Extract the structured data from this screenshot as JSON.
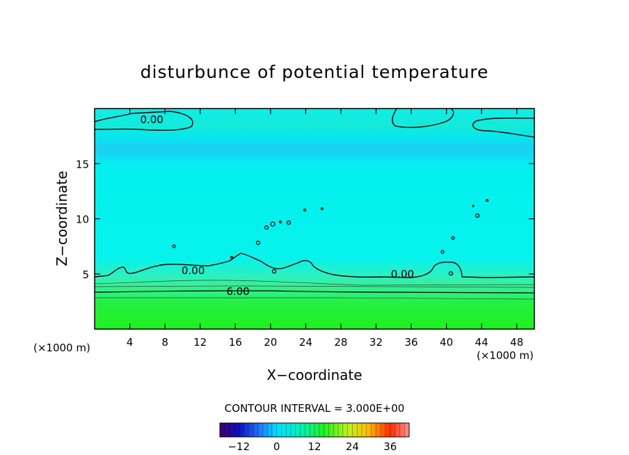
{
  "chart_data": {
    "type": "heatmap",
    "title": "disturbunce of potential temperature",
    "xlabel": "X−coordinate",
    "ylabel": "Z−coordinate",
    "x_unit": "(×1000 m)",
    "z_unit": "(×1000 m)",
    "xlim": [
      0,
      50
    ],
    "ylim": [
      0,
      20
    ],
    "x_ticks": [
      4,
      8,
      12,
      16,
      20,
      24,
      28,
      32,
      36,
      40,
      44,
      48
    ],
    "y_ticks": [
      5,
      10,
      15
    ],
    "contour_labels": [
      {
        "text": "0.00",
        "x": 6.5,
        "y": 19.0
      },
      {
        "text": "0.00",
        "x": 11.2,
        "y": 5.3
      },
      {
        "text": "0.00",
        "x": 35.0,
        "y": 5.0
      },
      {
        "text": "6.00",
        "x": 16.3,
        "y": 3.4
      }
    ],
    "contour_interval_text": "CONTOUR INTERVAL = 3.000E+00",
    "colorbar": {
      "range": [
        -18,
        42
      ],
      "ticks": [
        -12,
        0,
        12,
        24,
        36
      ],
      "tick_labels": [
        "−12",
        "0",
        "12",
        "24",
        "36"
      ]
    },
    "colors": {
      "neg_low": "#300070",
      "mid_cyan": "#00f0f0",
      "green": "#20f020",
      "high": "#ff0000"
    }
  }
}
